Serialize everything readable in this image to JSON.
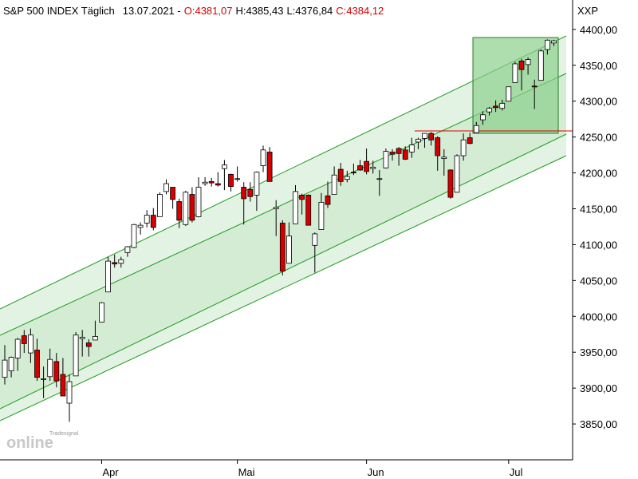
{
  "chart_data": {
    "type": "candlestick",
    "header": {
      "title": "S&P 500 INDEX Täglich",
      "date": "13.07.2021 -",
      "open": "O:4381,07",
      "high": "H:4385,43",
      "low": "L:4376,84",
      "close": "C:4384,12"
    },
    "axis_label": "XXP",
    "watermark": {
      "brand": "Tradesignal",
      "name": "online"
    },
    "up_color": "#ffffff",
    "down_color": "#d40000",
    "categories": [
      null,
      null,
      null,
      null,
      null,
      null,
      null,
      null,
      null,
      null,
      null,
      null,
      null,
      null,
      null,
      "Apr",
      null,
      null,
      null,
      null,
      null,
      null,
      null,
      null,
      null,
      null,
      null,
      null,
      null,
      null,
      null,
      null,
      null,
      null,
      null,
      null,
      "Mai",
      null,
      null,
      null,
      null,
      null,
      null,
      null,
      null,
      null,
      null,
      null,
      null,
      null,
      null,
      null,
      null,
      null,
      null,
      null,
      "Jun",
      null,
      null,
      null,
      null,
      null,
      null,
      null,
      null,
      null,
      null,
      null,
      null,
      null,
      null,
      null,
      null,
      null,
      null,
      null,
      null,
      null,
      "Jul",
      null,
      null,
      null,
      null,
      null,
      null,
      null
    ],
    "open": [
      3915,
      3924,
      3942,
      3973,
      3949,
      3953,
      3913,
      3916,
      3937,
      3919,
      3879,
      3917,
      3969,
      3963,
      3967,
      3992,
      4034,
      4075,
      4074,
      4089,
      4096,
      4124,
      4130,
      4141,
      4139,
      4174,
      4180,
      4160,
      4128,
      4170,
      4139,
      4185,
      4188,
      4185,
      4206,
      4198,
      4191,
      4180,
      4177,
      4169,
      4210,
      4229,
      4150,
      4130,
      4074,
      4129,
      4169,
      4169,
      4099,
      4121,
      4168,
      4170,
      4205,
      4191,
      4201,
      4210,
      4216,
      4206,
      4191,
      4207,
      4229,
      4234,
      4232,
      4229,
      4243,
      4248,
      4255,
      4249,
      4220,
      4204,
      4173,
      4224,
      4249,
      4256,
      4274,
      4285,
      4293,
      4290,
      4300,
      4326,
      4356,
      4351,
      4321,
      4329,
      4372,
      4381.07
    ],
    "high": [
      3960,
      3944,
      3970,
      3981,
      3983,
      3969,
      3930,
      3955,
      3949,
      3942,
      3919,
      3978,
      3981,
      3968,
      3994,
      4020,
      4083,
      4086,
      4083,
      4098,
      4129,
      4131,
      4148,
      4151,
      4173,
      4191,
      4180,
      4164,
      4175,
      4180,
      4194,
      4194,
      4193,
      4201,
      4218,
      4199,
      4209,
      4187,
      4187,
      4202,
      4238,
      4236,
      4162,
      4134,
      4131,
      4183,
      4171,
      4170,
      4117,
      4172,
      4188,
      4209,
      4214,
      4203,
      4213,
      4218,
      4234,
      4217,
      4204,
      4234,
      4233,
      4236,
      4237,
      4249,
      4249,
      4255,
      4257,
      4251,
      4233,
      4205,
      4226,
      4255,
      4256,
      4271,
      4286,
      4292,
      4301,
      4302,
      4320,
      4355,
      4359,
      4361,
      4330,
      4372,
      4386,
      4385.43
    ],
    "low": [
      3905,
      3915,
      3924,
      3949,
      3935,
      3910,
      3886,
      3910,
      3901,
      3889,
      3853,
      3917,
      3944,
      3944,
      3967,
      3992,
      4034,
      4068,
      4068,
      4083,
      4095,
      4114,
      4124,
      4120,
      4139,
      4170,
      4150,
      4123,
      4126,
      4131,
      4138,
      4182,
      4181,
      4181,
      4176,
      4174,
      4188,
      4128,
      4160,
      4147,
      4201,
      4188,
      4112,
      4057,
      4074,
      4129,
      4142,
      4127,
      4061,
      4121,
      4151,
      4170,
      4182,
      4187,
      4197,
      4203,
      4198,
      4199,
      4168,
      4206,
      4217,
      4210,
      4218,
      4221,
      4233,
      4235,
      4238,
      4203,
      4196,
      4164,
      4173,
      4217,
      4240,
      4256,
      4267,
      4280,
      4285,
      4287,
      4300,
      4326,
      4315,
      4337,
      4289,
      4329,
      4365,
      4376.84
    ],
    "close": [
      3939,
      3943,
      3968,
      3962,
      3974,
      3915,
      3913,
      3940,
      3910,
      3889,
      3909,
      3974,
      3971,
      3958,
      3972,
      4019,
      4077,
      4073,
      4079,
      4097,
      4128,
      4127,
      4141,
      4124,
      4170,
      4185,
      4163,
      4134,
      4173,
      4134,
      4180,
      4187,
      4186,
      4183,
      4211,
      4181,
      4192,
      4164,
      4167,
      4201,
      4232,
      4188,
      4152,
      4063,
      4112,
      4174,
      4163,
      4127,
      4115,
      4159,
      4156,
      4197,
      4188,
      4195,
      4200,
      4204,
      4202,
      4208,
      4192,
      4230,
      4226,
      4227,
      4219,
      4239,
      4247,
      4255,
      4246,
      4224,
      4222,
      4166,
      4224,
      4246,
      4241,
      4266,
      4281,
      4290,
      4291,
      4297,
      4320,
      4352,
      4344,
      4358,
      4320,
      4370,
      4385,
      4384.12
    ],
    "ylim": [
      3800,
      4441
    ],
    "yticks": [
      {
        "value": 3850,
        "label": "3850,00"
      },
      {
        "value": 3900,
        "label": "3900,00"
      },
      {
        "value": 3950,
        "label": "3950,00"
      },
      {
        "value": 4000,
        "label": "4000,00"
      },
      {
        "value": 4050,
        "label": "4050,00"
      },
      {
        "value": 4100,
        "label": "4100,00"
      },
      {
        "value": 4150,
        "label": "4150,00"
      },
      {
        "value": 4200,
        "label": "4200,00"
      },
      {
        "value": 4250,
        "label": "4250,00"
      },
      {
        "value": 4300,
        "label": "4300,00"
      },
      {
        "value": 4350,
        "label": "4350,00"
      },
      {
        "value": 4400,
        "label": "4400,00"
      }
    ]
  }
}
